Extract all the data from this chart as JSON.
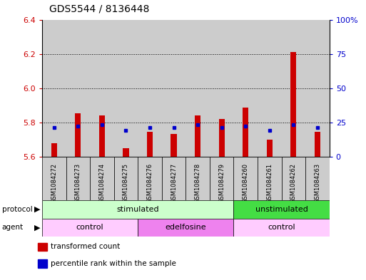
{
  "title": "GDS5544 / 8136448",
  "samples": [
    "GSM1084272",
    "GSM1084273",
    "GSM1084274",
    "GSM1084275",
    "GSM1084276",
    "GSM1084277",
    "GSM1084278",
    "GSM1084279",
    "GSM1084260",
    "GSM1084261",
    "GSM1084262",
    "GSM1084263"
  ],
  "red_values": [
    5.68,
    5.855,
    5.84,
    5.65,
    5.745,
    5.735,
    5.84,
    5.82,
    5.885,
    5.7,
    6.21,
    5.745
  ],
  "blue_values_pct": [
    21.5,
    22.5,
    23.5,
    19.5,
    21.5,
    21.5,
    23.5,
    21.5,
    22.5,
    19.5,
    23.5,
    21.5
  ],
  "y_min": 5.6,
  "y_max": 6.4,
  "y_ticks": [
    5.6,
    5.8,
    6.0,
    6.2,
    6.4
  ],
  "y_right_ticks": [
    0,
    25,
    50,
    75,
    100
  ],
  "y_right_labels": [
    "0",
    "25",
    "50",
    "75",
    "100%"
  ],
  "grid_lines": [
    5.8,
    6.0,
    6.2
  ],
  "protocol_groups": [
    {
      "label": "stimulated",
      "start": 0,
      "end": 7,
      "color": "#CCFFCC"
    },
    {
      "label": "unstimulated",
      "start": 8,
      "end": 11,
      "color": "#44DD44"
    }
  ],
  "agent_groups": [
    {
      "label": "control",
      "start": 0,
      "end": 3,
      "color": "#FFCCFF"
    },
    {
      "label": "edelfosine",
      "start": 4,
      "end": 7,
      "color": "#EE82EE"
    },
    {
      "label": "control",
      "start": 8,
      "end": 11,
      "color": "#FFCCFF"
    }
  ],
  "legend_items": [
    {
      "color": "#CC0000",
      "label": "transformed count"
    },
    {
      "color": "#0000CC",
      "label": "percentile rank within the sample"
    }
  ],
  "bar_color": "#CC0000",
  "blue_color": "#0000CC",
  "col_bg_color": "#CCCCCC",
  "chart_bg_color": "#FFFFFF",
  "title_fontsize": 10,
  "axis_label_color_left": "#CC0000",
  "axis_label_color_right": "#0000CC"
}
